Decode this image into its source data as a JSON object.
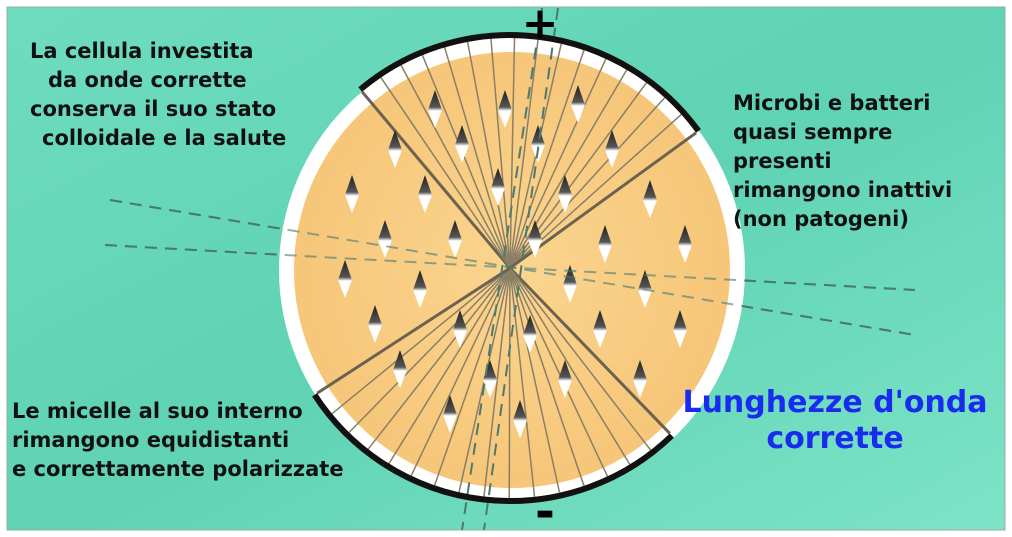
{
  "plus_sign": "+",
  "minus_sign": "-",
  "top_left_text": [
    "La cellula investita",
    "da onde corrette",
    "conserva il suo stato",
    "colloidale e la salute"
  ],
  "right_text": [
    "Microbi e batteri",
    "quasi sempre",
    "presenti",
    "rimangono inattivi",
    "(non patogeni)"
  ],
  "bottom_left_text": [
    "Le micelle al suo interno",
    "rimangono equidistanti",
    "e correttamente polarizzate"
  ],
  "highlight_text": [
    "Lunghezze d'onda",
    "corrette"
  ]
}
